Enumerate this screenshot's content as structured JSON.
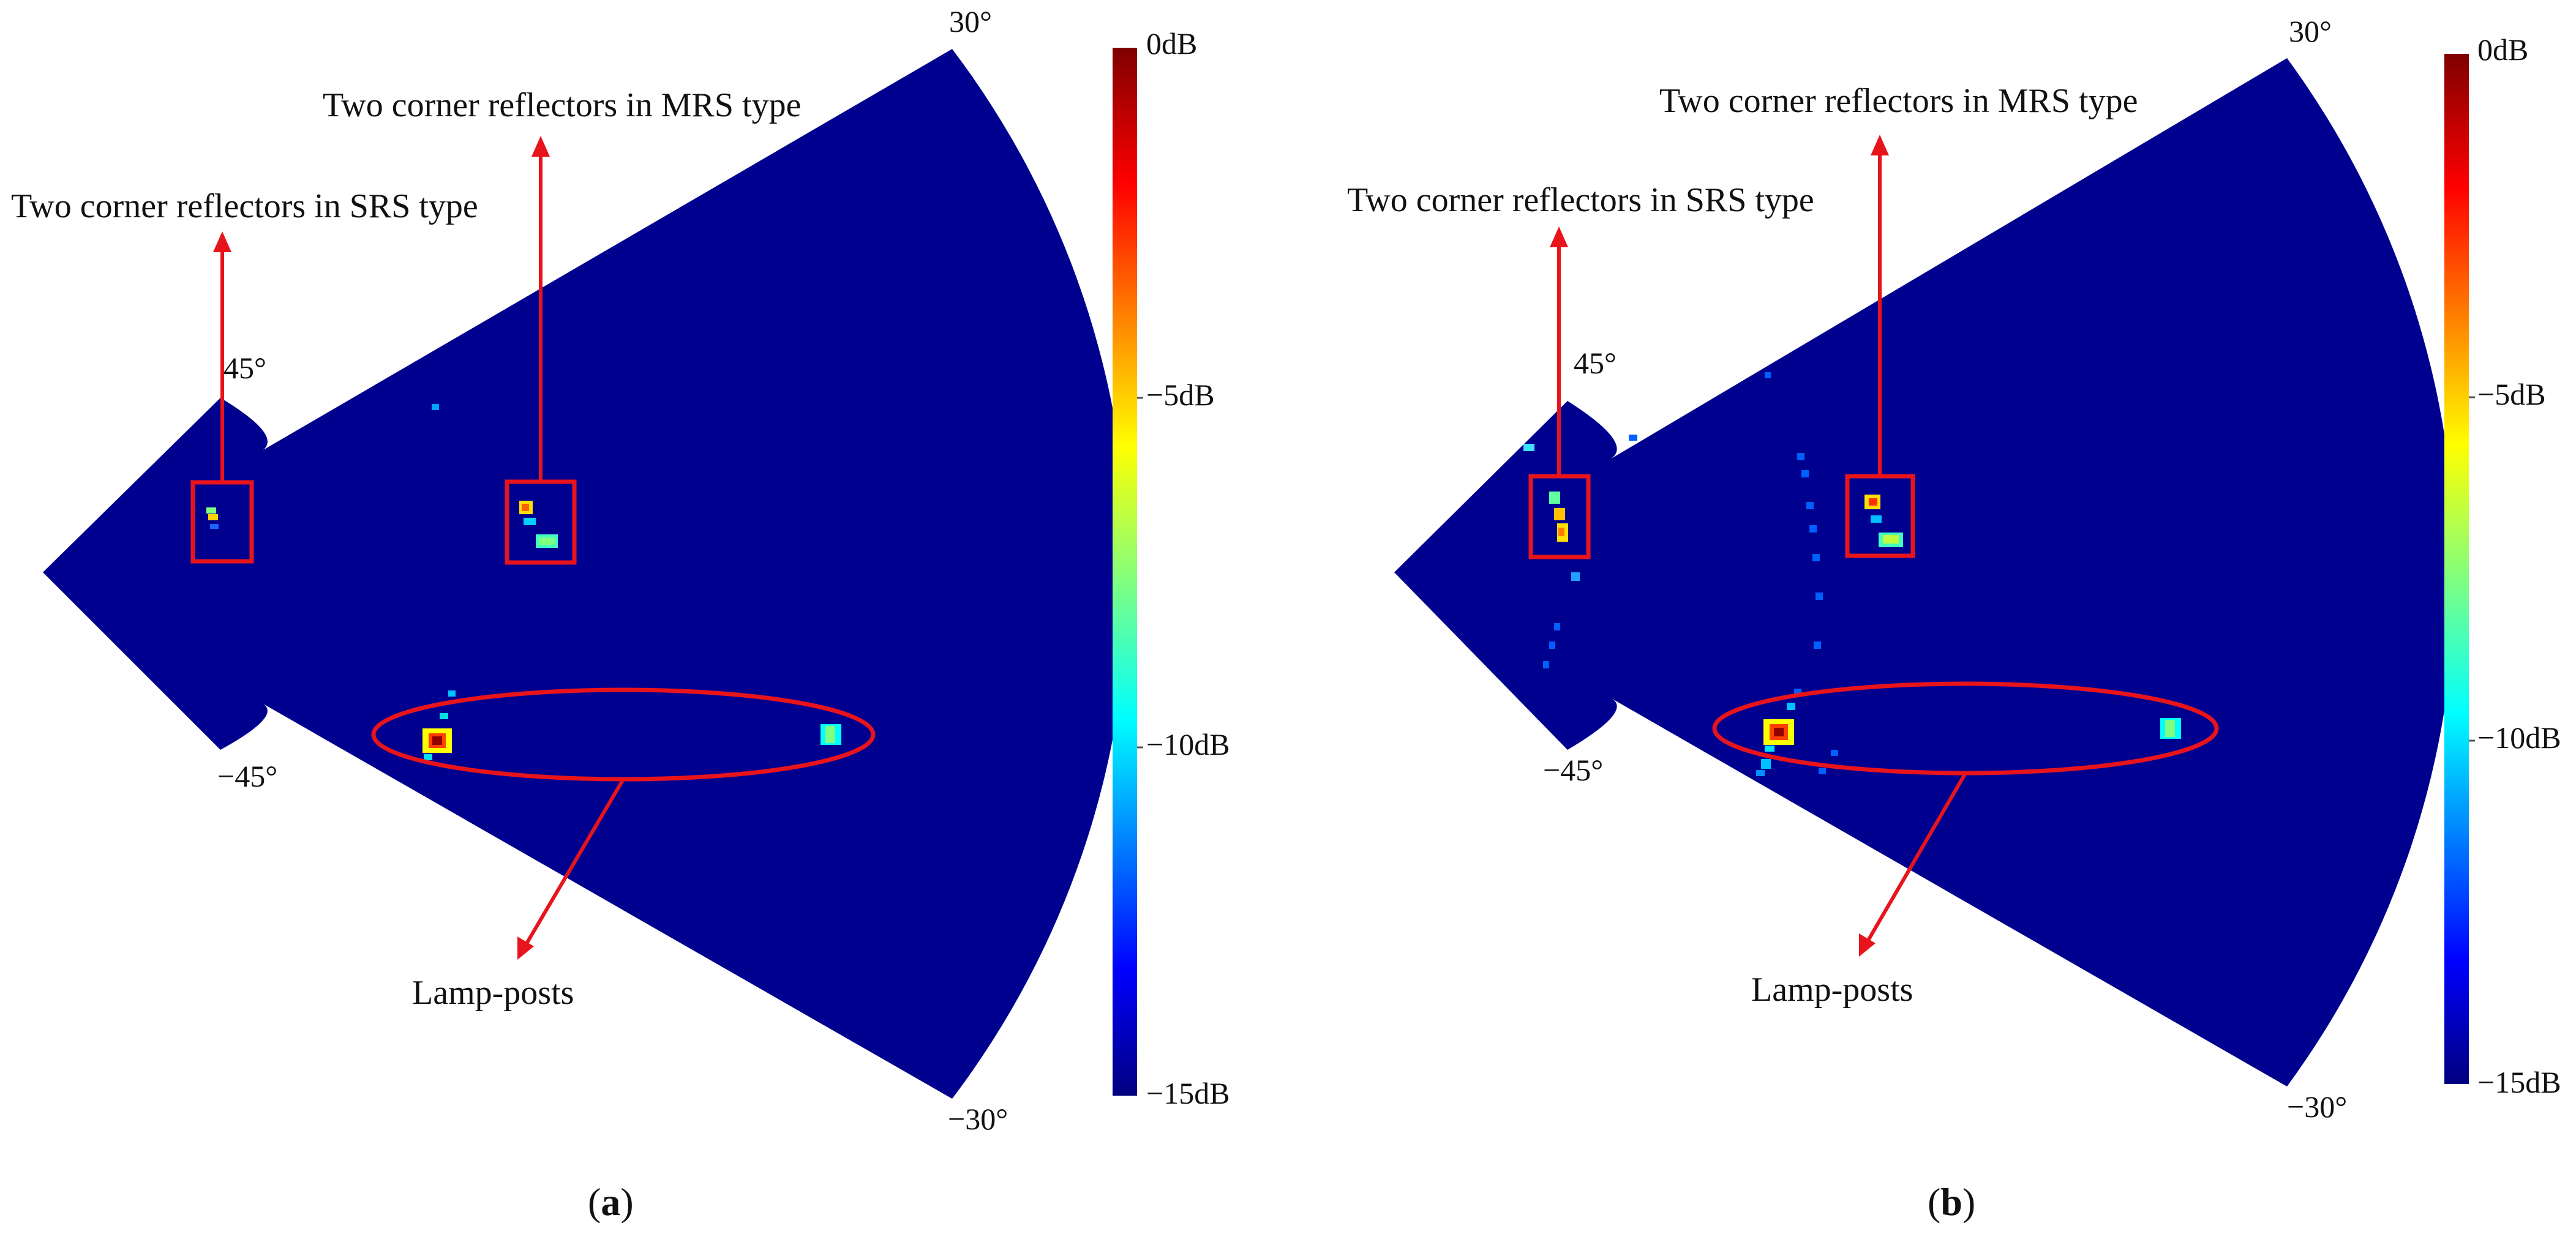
{
  "panels": [
    {
      "caption_letter": "a",
      "angles": {
        "top_right": "30°",
        "bottom_right": "−30°",
        "top_left": "45°",
        "bottom_left": "−45°"
      },
      "annotations": {
        "srs": "Two corner reflectors in SRS type",
        "mrs": "Two corner reflectors in MRS type",
        "lamp": "Lamp-posts"
      },
      "colorbar_ticks": [
        "0dB",
        "−5dB",
        "−10dB",
        "−15dB"
      ]
    },
    {
      "caption_letter": "b",
      "angles": {
        "top_right": "30°",
        "bottom_right": "−30°",
        "top_left": "45°",
        "bottom_left": "−45°"
      },
      "annotations": {
        "srs": "Two corner reflectors in SRS type",
        "mrs": "Two corner reflectors in MRS type",
        "lamp": "Lamp-posts"
      },
      "colorbar_ticks": [
        "0dB",
        "−5dB",
        "−10dB",
        "−15dB"
      ]
    }
  ],
  "colors": {
    "background": "#00008f",
    "annotation_red": "#e8141b",
    "colormap": [
      "#000080",
      "#0000ff",
      "#00ffff",
      "#ffff00",
      "#ff0000",
      "#800000"
    ]
  }
}
